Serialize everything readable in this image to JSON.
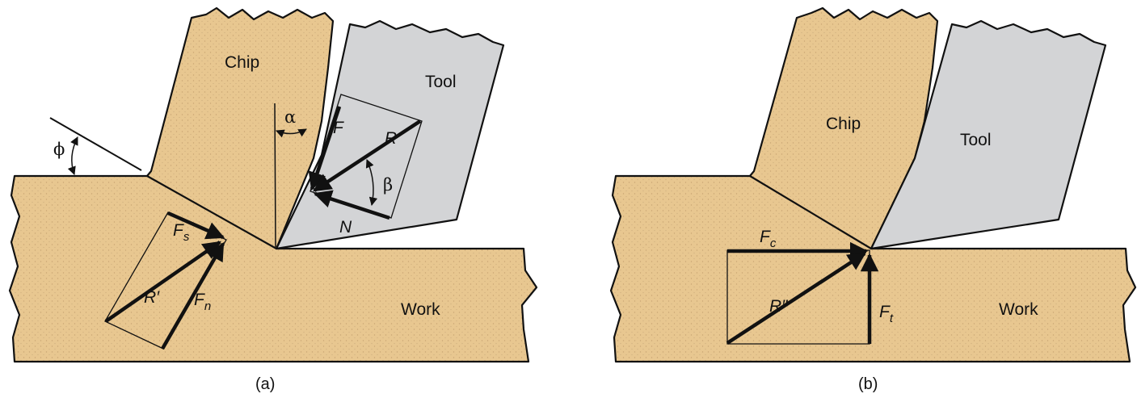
{
  "colors": {
    "work": "#E8C790",
    "work_stipple": "#C9A574",
    "tool": "#D3D4D6",
    "outline": "#111111"
  },
  "panel_a": {
    "caption": "(a)",
    "labels": {
      "chip": "Chip",
      "tool": "Tool",
      "work": "Work"
    },
    "angles": {
      "shear": "ϕ",
      "rake": "α",
      "friction": "β"
    },
    "forces": {
      "F": "F",
      "R": "R",
      "N": "N",
      "Fs_main": "F",
      "Fs_sub": "s",
      "Fn_main": "F",
      "Fn_sub": "n",
      "R_prime": "R′"
    }
  },
  "panel_b": {
    "caption": "(b)",
    "labels": {
      "chip": "Chip",
      "tool": "Tool",
      "work": "Work"
    },
    "forces": {
      "Fc_main": "F",
      "Fc_sub": "c",
      "Ft_main": "F",
      "Ft_sub": "t",
      "R_double_prime": "R″"
    }
  }
}
